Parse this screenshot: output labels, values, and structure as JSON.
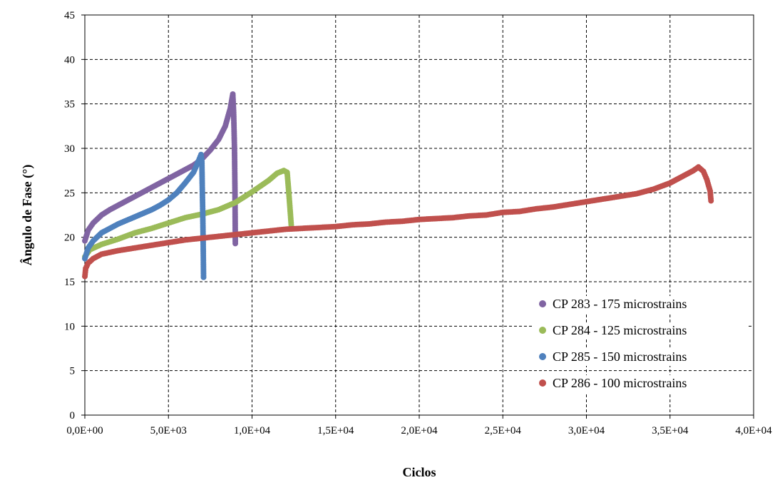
{
  "chart_data": {
    "type": "scatter",
    "title": "",
    "xlabel": "Ciclos",
    "ylabel": "Ângulo de Fase (°)",
    "xlim": [
      0,
      40000
    ],
    "ylim": [
      0,
      45
    ],
    "x_tick_values": [
      0,
      5000,
      10000,
      15000,
      20000,
      25000,
      30000,
      35000,
      40000
    ],
    "x_tick_labels": [
      "0,0E+00",
      "5,0E+03",
      "1,0E+04",
      "1,5E+04",
      "2,0E+04",
      "2,5E+04",
      "3,0E+04",
      "3,5E+04",
      "4,0E+04"
    ],
    "y_tick_values": [
      0,
      5,
      10,
      15,
      20,
      25,
      30,
      35,
      40,
      45
    ],
    "y_tick_labels": [
      "0",
      "5",
      "10",
      "15",
      "20",
      "25",
      "30",
      "35",
      "40",
      "45"
    ],
    "grid": true,
    "legend_position": "bottom-right",
    "series": [
      {
        "name": "CP 283 - 175 microstrains",
        "color": "#8064A2",
        "points": [
          [
            0,
            19.6
          ],
          [
            200,
            20.8
          ],
          [
            500,
            21.6
          ],
          [
            1000,
            22.5
          ],
          [
            1500,
            23.1
          ],
          [
            2000,
            23.6
          ],
          [
            2500,
            24.1
          ],
          [
            3000,
            24.6
          ],
          [
            3500,
            25.1
          ],
          [
            4000,
            25.6
          ],
          [
            4500,
            26.1
          ],
          [
            5000,
            26.6
          ],
          [
            5500,
            27.1
          ],
          [
            6000,
            27.6
          ],
          [
            6500,
            28.1
          ],
          [
            7000,
            28.8
          ],
          [
            7500,
            29.8
          ],
          [
            8000,
            31.0
          ],
          [
            8400,
            32.5
          ],
          [
            8700,
            34.5
          ],
          [
            8850,
            36.1
          ],
          [
            8900,
            34.0
          ],
          [
            8950,
            30.0
          ],
          [
            8980,
            25.0
          ],
          [
            9000,
            19.3
          ]
        ]
      },
      {
        "name": "CP 284 - 125 microstrains",
        "color": "#9BBB59",
        "points": [
          [
            0,
            17.8
          ],
          [
            300,
            18.6
          ],
          [
            1000,
            19.2
          ],
          [
            2000,
            19.8
          ],
          [
            3000,
            20.5
          ],
          [
            4000,
            21.0
          ],
          [
            5000,
            21.6
          ],
          [
            6000,
            22.2
          ],
          [
            7000,
            22.6
          ],
          [
            8000,
            23.1
          ],
          [
            9000,
            23.9
          ],
          [
            10000,
            25.1
          ],
          [
            11000,
            26.4
          ],
          [
            11500,
            27.2
          ],
          [
            11900,
            27.5
          ],
          [
            12100,
            27.3
          ],
          [
            12200,
            25.0
          ],
          [
            12300,
            22.5
          ],
          [
            12350,
            21.2
          ]
        ]
      },
      {
        "name": "CP 285 - 150 microstrains",
        "color": "#4F81BD",
        "points": [
          [
            0,
            17.6
          ],
          [
            200,
            18.8
          ],
          [
            500,
            19.6
          ],
          [
            1000,
            20.5
          ],
          [
            1500,
            21.0
          ],
          [
            2000,
            21.5
          ],
          [
            2500,
            21.9
          ],
          [
            3000,
            22.3
          ],
          [
            3500,
            22.7
          ],
          [
            4000,
            23.1
          ],
          [
            4500,
            23.6
          ],
          [
            5000,
            24.2
          ],
          [
            5500,
            25.0
          ],
          [
            6000,
            26.1
          ],
          [
            6500,
            27.3
          ],
          [
            6800,
            28.6
          ],
          [
            6950,
            29.3
          ],
          [
            7000,
            28.5
          ],
          [
            7020,
            26.0
          ],
          [
            7050,
            23.0
          ],
          [
            7080,
            19.0
          ],
          [
            7100,
            15.5
          ]
        ]
      },
      {
        "name": "CP 286 - 100 microstrains",
        "color": "#C0504D",
        "points": [
          [
            0,
            15.6
          ],
          [
            50,
            16.5
          ],
          [
            200,
            17.1
          ],
          [
            500,
            17.6
          ],
          [
            1000,
            18.1
          ],
          [
            2000,
            18.5
          ],
          [
            3000,
            18.8
          ],
          [
            4000,
            19.1
          ],
          [
            5000,
            19.4
          ],
          [
            6000,
            19.7
          ],
          [
            7000,
            19.9
          ],
          [
            8000,
            20.1
          ],
          [
            9000,
            20.3
          ],
          [
            10000,
            20.5
          ],
          [
            11000,
            20.7
          ],
          [
            12000,
            20.9
          ],
          [
            13000,
            21.0
          ],
          [
            14000,
            21.1
          ],
          [
            15000,
            21.2
          ],
          [
            16000,
            21.4
          ],
          [
            17000,
            21.5
          ],
          [
            18000,
            21.7
          ],
          [
            19000,
            21.8
          ],
          [
            20000,
            22.0
          ],
          [
            21000,
            22.1
          ],
          [
            22000,
            22.2
          ],
          [
            23000,
            22.4
          ],
          [
            24000,
            22.5
          ],
          [
            25000,
            22.8
          ],
          [
            26000,
            22.9
          ],
          [
            27000,
            23.2
          ],
          [
            28000,
            23.4
          ],
          [
            29000,
            23.7
          ],
          [
            30000,
            24.0
          ],
          [
            31000,
            24.3
          ],
          [
            32000,
            24.6
          ],
          [
            33000,
            24.9
          ],
          [
            34000,
            25.4
          ],
          [
            35000,
            26.1
          ],
          [
            35800,
            26.9
          ],
          [
            36400,
            27.5
          ],
          [
            36700,
            27.9
          ],
          [
            37000,
            27.4
          ],
          [
            37200,
            26.5
          ],
          [
            37400,
            25.2
          ],
          [
            37450,
            24.1
          ]
        ]
      }
    ]
  }
}
